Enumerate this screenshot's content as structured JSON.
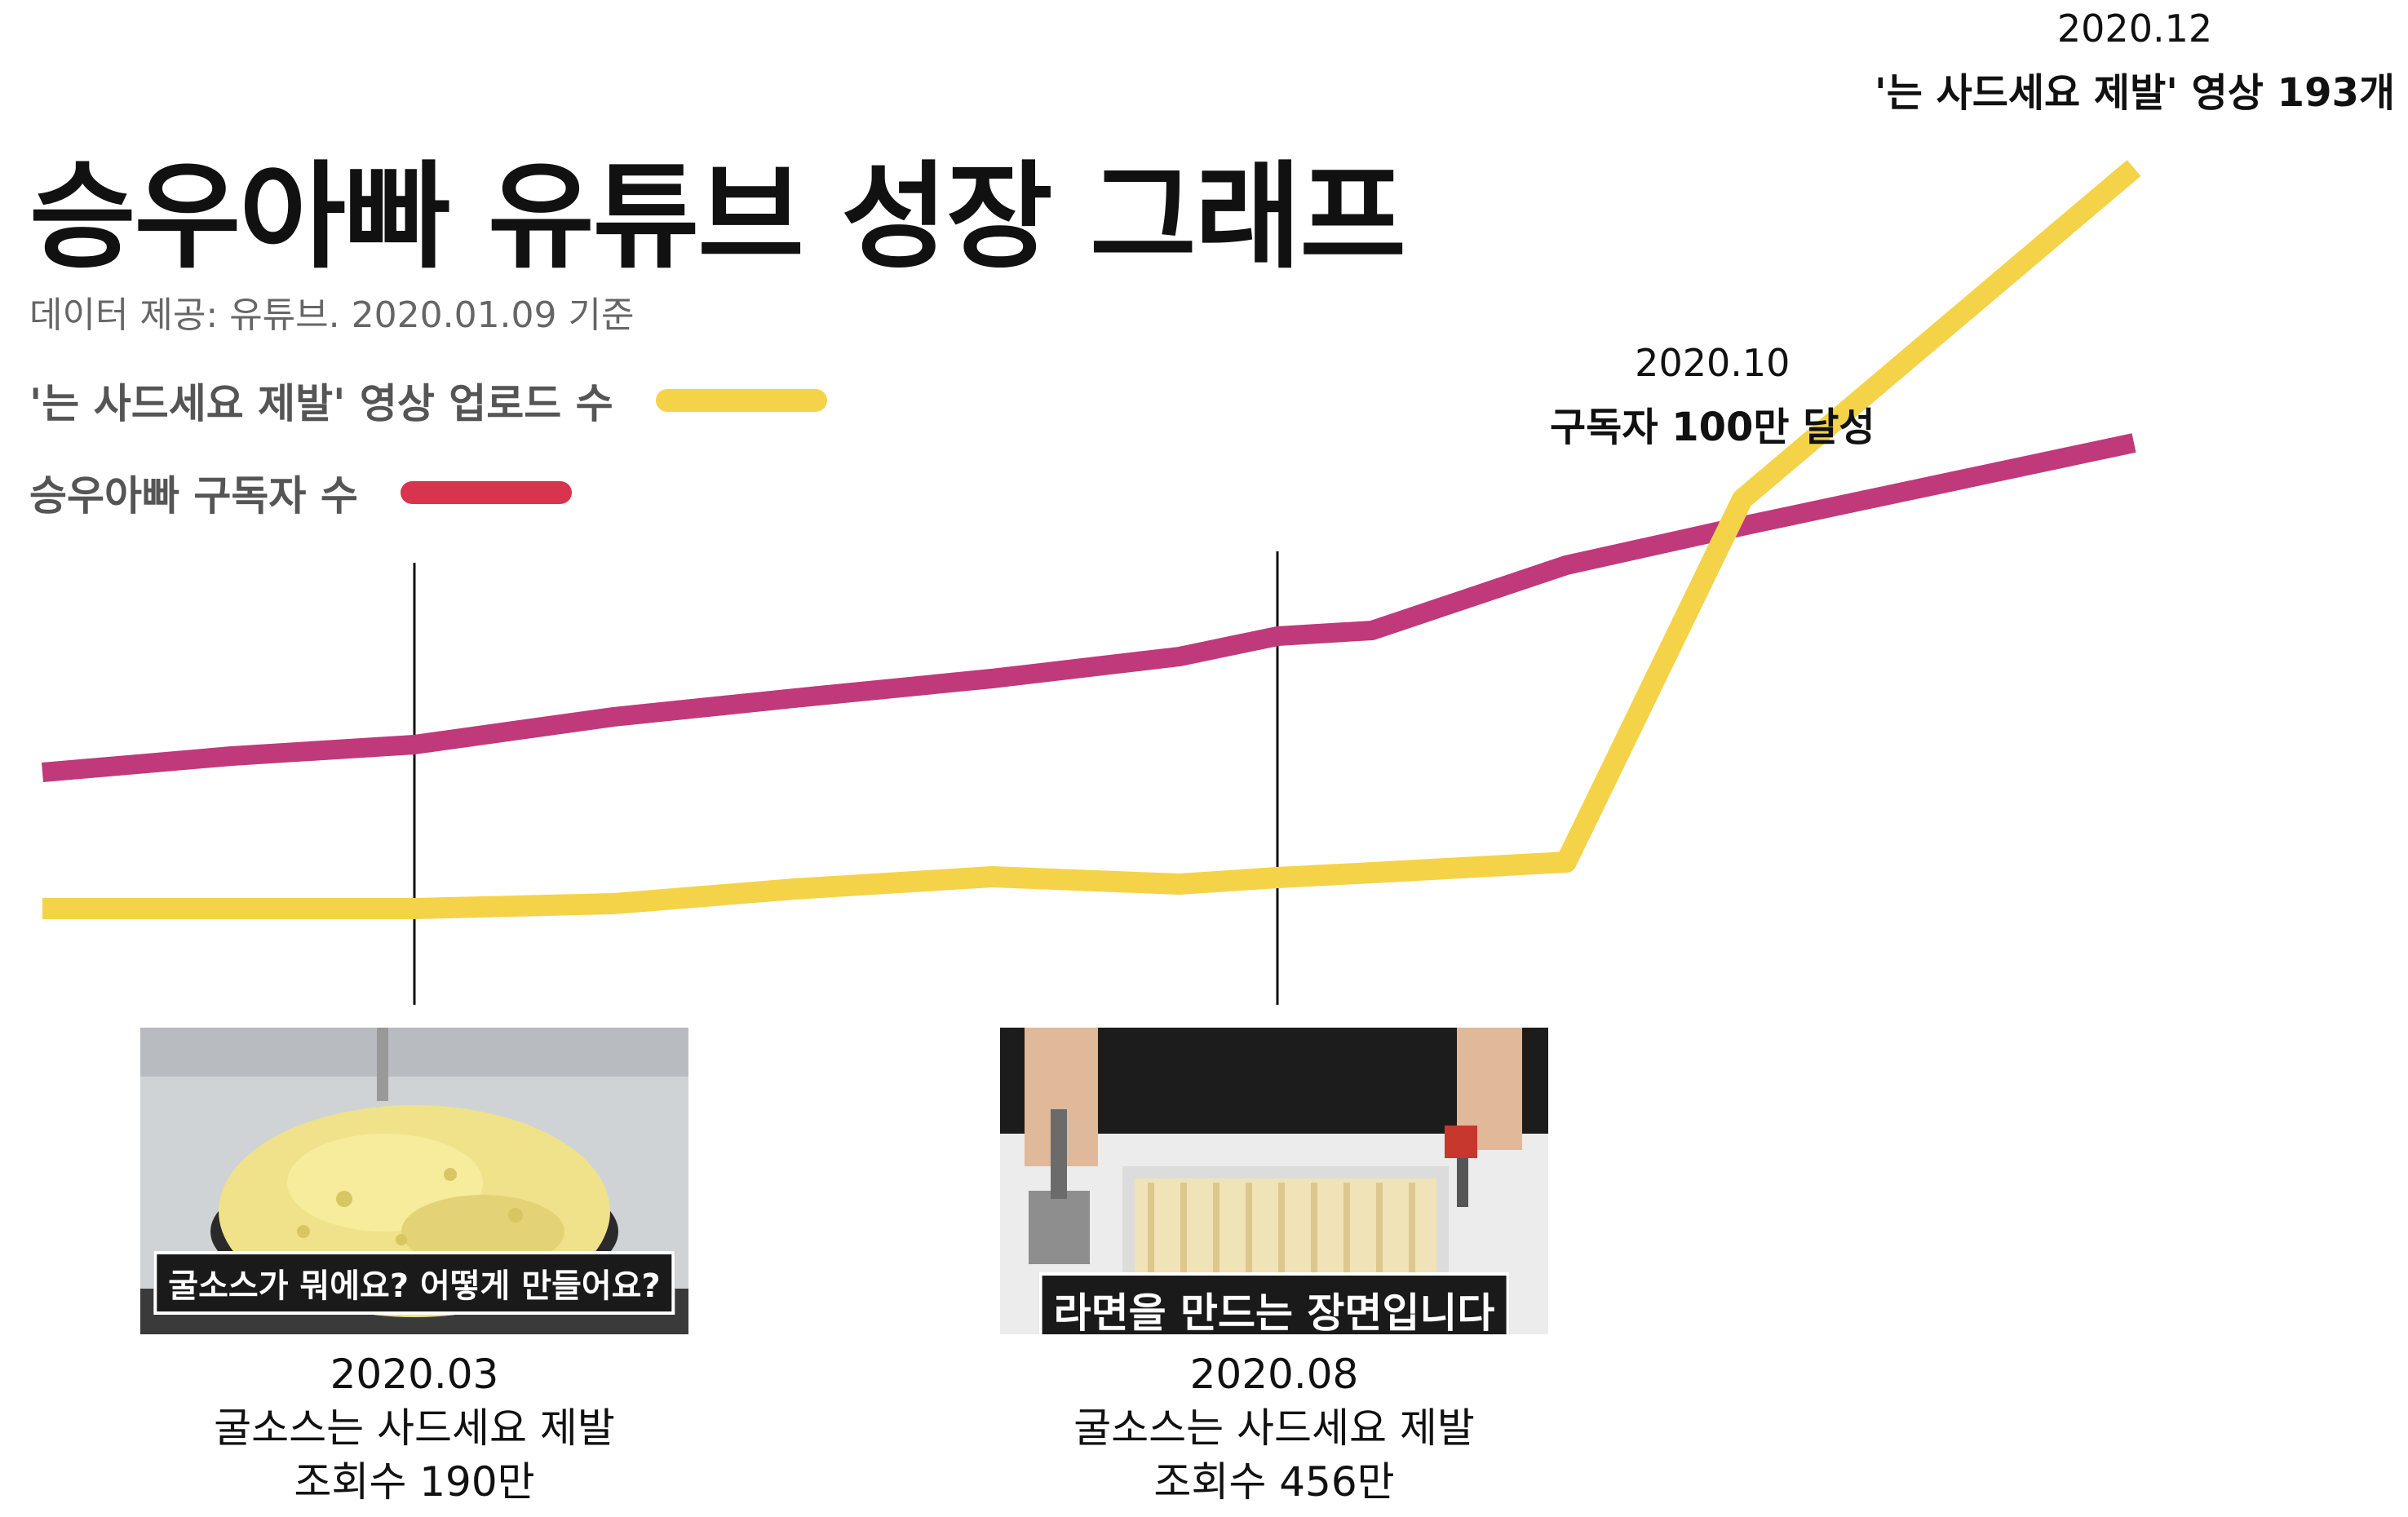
{
  "title": "승우아빠 유튜브 성장 그래프",
  "subtitle": "데이터 제공: 유튜브. 2020.01.09 기준",
  "legend": {
    "uploads_label": "'는 사드세요 제발' 영상 업로드 수",
    "subscribers_label": "승우아빠  구독자 수"
  },
  "colors": {
    "uploads": "#f5d348",
    "subscribers": "#c0397a",
    "subscribers_legend": "#d8344e",
    "marker": "#111111"
  },
  "chart_data": {
    "type": "line",
    "x": [
      0,
      1,
      2,
      3,
      4,
      5,
      6,
      7,
      8,
      9,
      10,
      11
    ],
    "series": [
      {
        "name": "'는 사드세요 제발' 영상 업로드 수",
        "values": [
          1,
          1,
          1,
          2,
          5,
          8,
          6,
          8,
          11,
          16,
          125,
          193
        ]
      },
      {
        "name": "승우아빠  구독자 수",
        "values": [
          41,
          45,
          48,
          53,
          56,
          59,
          63,
          67,
          72,
          82,
          90,
          100
        ]
      }
    ],
    "markers": [
      2,
      7
    ],
    "annotations": [
      {
        "date": "2020.10",
        "text": "구독자 100만 달성"
      },
      {
        "date": "2020.12",
        "text": "'는 사드세요 제발' 영상 193개"
      }
    ]
  },
  "videos": [
    {
      "caption": "굴소스가 뭐에요? 어떻게 만들어요?",
      "date": "2020.03",
      "title": "굴소스는 사드세요 제발",
      "views": "조회수 190만"
    },
    {
      "caption": "라면을 만드는 장면입니다",
      "date": "2020.08",
      "title": "굴소스는 사드세요 제발",
      "views": "조회수 456만"
    }
  ]
}
